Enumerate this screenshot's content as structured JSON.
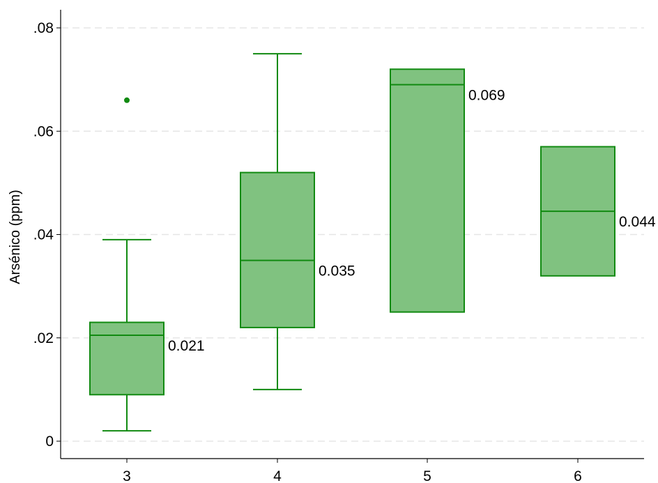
{
  "chart_data": {
    "type": "boxplot",
    "title": "",
    "xlabel": "",
    "ylabel": "Arsénico (ppm)",
    "ylim": [
      -0.0035,
      0.083
    ],
    "y_ticks": [
      {
        "value": 0,
        "label": "0"
      },
      {
        "value": 0.02,
        "label": ".02"
      },
      {
        "value": 0.04,
        "label": ".04"
      },
      {
        "value": 0.06,
        "label": ".06"
      },
      {
        "value": 0.08,
        "label": ".08"
      }
    ],
    "grid": true,
    "categories": [
      "3",
      "4",
      "5",
      "6"
    ],
    "boxes": [
      {
        "category": "3",
        "whisker_low": 0.002,
        "q1": 0.009,
        "median": 0.0205,
        "q3": 0.023,
        "whisker_high": 0.039,
        "outliers": [
          0.066
        ],
        "median_label": "0.021"
      },
      {
        "category": "4",
        "whisker_low": 0.01,
        "q1": 0.022,
        "median": 0.035,
        "q3": 0.052,
        "whisker_high": 0.075,
        "outliers": [],
        "median_label": "0.035"
      },
      {
        "category": "5",
        "whisker_low": null,
        "q1": 0.025,
        "median": 0.069,
        "q3": 0.072,
        "whisker_high": null,
        "outliers": [],
        "median_label": "0.069"
      },
      {
        "category": "6",
        "whisker_low": null,
        "q1": 0.032,
        "median": 0.0445,
        "q3": 0.057,
        "whisker_high": null,
        "outliers": [],
        "median_label": "0.044"
      }
    ],
    "colors": {
      "box_fill": "#80c280",
      "box_stroke": "#118a11",
      "grid": "#e6e6e6",
      "axis": "#000000"
    }
  }
}
